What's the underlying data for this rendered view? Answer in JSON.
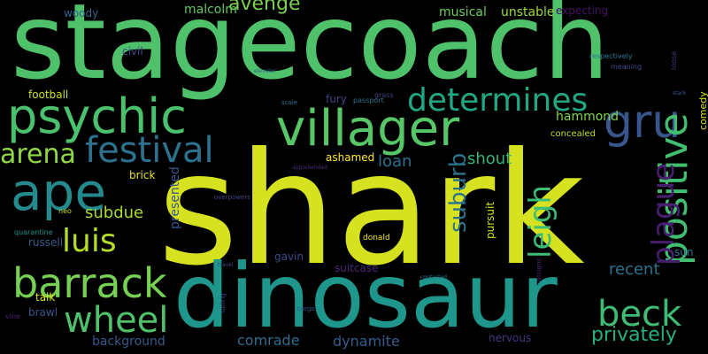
{
  "background": "#000000",
  "words": [
    {
      "text": "shark",
      "color": "#d6e21f"
    },
    {
      "text": "stagecoach",
      "color": "#4fc16b"
    },
    {
      "text": "dinosaur",
      "color": "#1f968b"
    },
    {
      "text": "villager",
      "color": "#56c667"
    },
    {
      "text": "psychic",
      "color": "#4ac16d"
    },
    {
      "text": "ape",
      "color": "#238a8d"
    },
    {
      "text": "gru",
      "color": "#39568c"
    },
    {
      "text": "festival",
      "color": "#2c728e"
    },
    {
      "text": "determines",
      "color": "#22a785"
    },
    {
      "text": "barrack",
      "color": "#75d054"
    },
    {
      "text": "positive",
      "color": "#42be71"
    },
    {
      "text": "beck",
      "color": "#3fbc73"
    },
    {
      "text": "wheel",
      "color": "#4fc16b"
    },
    {
      "text": "luis",
      "color": "#b5de2b"
    },
    {
      "text": "arena",
      "color": "#8fd744"
    },
    {
      "text": "plague",
      "color": "#481f70"
    },
    {
      "text": "leigh",
      "color": "#3dbc74"
    },
    {
      "text": "suburb",
      "color": "#2c728e"
    },
    {
      "text": "avenge",
      "color": "#7ad151"
    },
    {
      "text": "privately",
      "color": "#29af7f"
    },
    {
      "text": "shout",
      "color": "#35b779"
    },
    {
      "text": "loan",
      "color": "#2e6f8e"
    },
    {
      "text": "subdue",
      "color": "#a8db34"
    },
    {
      "text": "recent",
      "color": "#2d708e"
    },
    {
      "text": "comrade",
      "color": "#2f6c8e"
    },
    {
      "text": "dynamite",
      "color": "#365c8d"
    },
    {
      "text": "background",
      "color": "#38598c"
    },
    {
      "text": "malcolm",
      "color": "#5ec962"
    },
    {
      "text": "musical",
      "color": "#6ccd5a"
    },
    {
      "text": "unstable",
      "color": "#9fda3a"
    },
    {
      "text": "hammond",
      "color": "#81d34d"
    },
    {
      "text": "presented",
      "color": "#38598c"
    },
    {
      "text": "ashamed",
      "color": "#fde725"
    },
    {
      "text": "brick",
      "color": "#e2e418"
    },
    {
      "text": "football",
      "color": "#cae11f"
    },
    {
      "text": "russell",
      "color": "#365d8d"
    },
    {
      "text": "pursuit",
      "color": "#d0e11c"
    },
    {
      "text": "gavin",
      "color": "#3e4989"
    },
    {
      "text": "suitcase",
      "color": "#482878"
    },
    {
      "text": "nervous",
      "color": "#453781"
    },
    {
      "text": "brawl",
      "color": "#3a548c"
    },
    {
      "text": "woody",
      "color": "#33628d"
    },
    {
      "text": "civil",
      "color": "#3f4788"
    },
    {
      "text": "fury",
      "color": "#414487"
    },
    {
      "text": "talk",
      "color": "#d8e219"
    },
    {
      "text": "sun",
      "color": "#2d708e"
    },
    {
      "text": "expecting",
      "color": "#471164"
    },
    {
      "text": "comedy",
      "color": "#d8e219"
    },
    {
      "text": "concealed",
      "color": "#bddf26"
    },
    {
      "text": "donald",
      "color": "#f1e51d"
    },
    {
      "text": "respectively",
      "color": "#2a788e"
    },
    {
      "text": "meaning",
      "color": "#3d4d8a"
    },
    {
      "text": "loose",
      "color": "#46327e"
    },
    {
      "text": "neo",
      "color": "#c2df23"
    },
    {
      "text": "quarantine",
      "color": "#21918c"
    },
    {
      "text": "vine",
      "color": "#482576"
    },
    {
      "text": "passport",
      "color": "#2a788e"
    },
    {
      "text": "grass",
      "color": "#433e85"
    },
    {
      "text": "scale",
      "color": "#2e6f8e"
    },
    {
      "text": "elevator",
      "color": "#35608d"
    },
    {
      "text": "stark",
      "color": "#3b528b"
    },
    {
      "text": "apprehended",
      "color": "#472d7b"
    },
    {
      "text": "overpowers",
      "color": "#414487"
    },
    {
      "text": "contacted",
      "color": "#2c728e"
    },
    {
      "text": "assigns",
      "color": "#482878"
    },
    {
      "text": "cargo",
      "color": "#39568c"
    },
    {
      "text": "sailing",
      "color": "#443983"
    },
    {
      "text": "travel",
      "color": "#3e4a89"
    }
  ]
}
